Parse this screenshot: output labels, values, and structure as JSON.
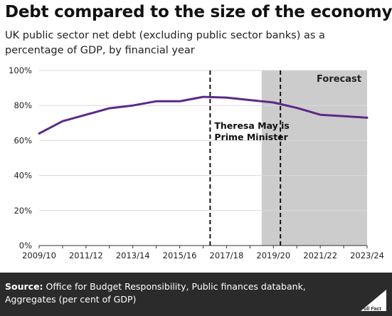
{
  "header": {
    "title": "Debt compared to the size of the economy",
    "subtitle": "UK public sector net debt (excluding public sector banks) as a percentage of GDP, by financial year"
  },
  "footer": {
    "source_label": "Source:",
    "source_text": "Office for Budget Responsibility, Public finances databank, Aggregates (per cent of GDP)",
    "logo_text": "Full Fact"
  },
  "chart_data": {
    "type": "line",
    "title": "Debt compared to the size of the economy",
    "subtitle": "UK public sector net debt (excluding public sector banks) as a percentage of GDP, by financial year",
    "xlabel": "",
    "ylabel": "",
    "x": [
      "2009/10",
      "2010/11",
      "2011/12",
      "2012/13",
      "2013/14",
      "2014/15",
      "2015/16",
      "2016/17",
      "2017/18",
      "2018/19",
      "2019/20",
      "2020/21",
      "2021/22",
      "2022/23",
      "2023/24"
    ],
    "x_tick_labels": [
      "2009/10",
      "2011/12",
      "2013/14",
      "2015/16",
      "2017/18",
      "2019/20",
      "2021/22",
      "2023/24"
    ],
    "y_tick_labels": [
      "0%",
      "20%",
      "40%",
      "60%",
      "80%",
      "100%"
    ],
    "ylim": [
      0,
      100
    ],
    "grid": "horizontal",
    "series": [
      {
        "values": [
          64,
          71,
          74.7,
          78.4,
          80,
          82.4,
          82.4,
          84.9,
          84.5,
          83.1,
          81.7,
          78.6,
          74.7,
          73.9,
          73
        ]
      }
    ],
    "forecast_start_index": 9.5,
    "forecast_label": "Forecast",
    "annotation": {
      "text_line1": "Theresa May is",
      "text_line2": "Prime Minister",
      "start_index": 7.3,
      "end_index": 10.3
    },
    "colors": {
      "line": "#5b2a86",
      "forecast": "#cccccc",
      "grid": "#d9d9d9"
    }
  }
}
